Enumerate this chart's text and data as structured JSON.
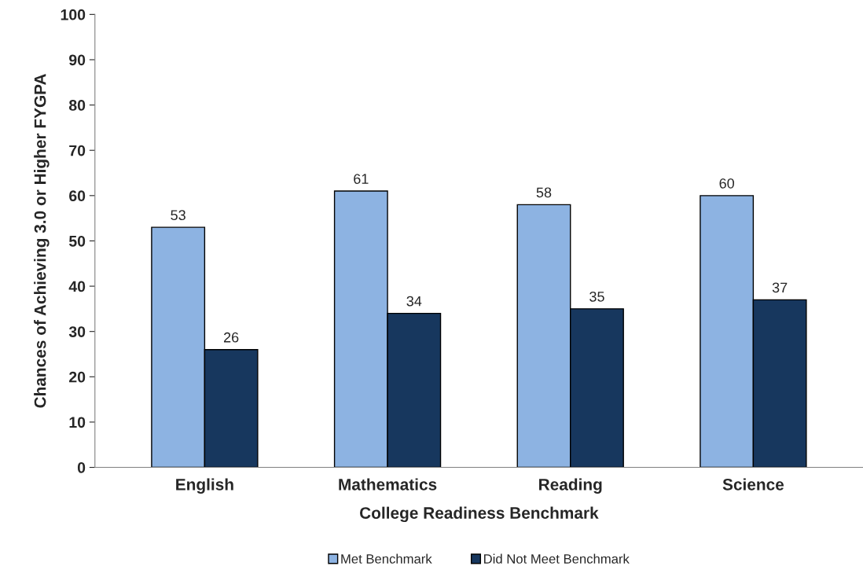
{
  "chart_data": {
    "type": "bar",
    "xlabel": "College Readiness Benchmark",
    "ylabel": "Chances of Achieving 3.0 or Higher FYGPA",
    "categories": [
      "English",
      "Mathematics",
      "Reading",
      "Science"
    ],
    "series": [
      {
        "name": "Met Benchmark",
        "color": "#8db3e2",
        "values": [
          53,
          61,
          58,
          60
        ]
      },
      {
        "name": "Did Not Meet Benchmark",
        "color": "#17375e",
        "values": [
          26,
          34,
          35,
          37
        ]
      }
    ],
    "ylim": [
      0,
      100
    ],
    "yticks": [
      0,
      10,
      20,
      30,
      40,
      50,
      60,
      70,
      80,
      90,
      100
    ],
    "data_labels": true,
    "grid": false,
    "legend": "bottom"
  }
}
